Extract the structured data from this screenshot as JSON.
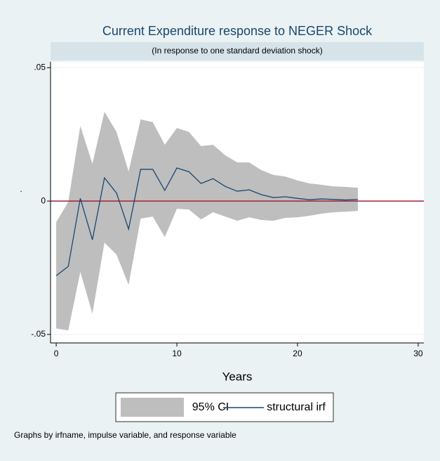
{
  "chart_data": {
    "type": "irf",
    "title": "Current Expenditure response to NEGER Shock",
    "subtitle": "(In response to one standard deviation shock)",
    "x_label": "Years",
    "y_label": ".",
    "note": "Graphs by irfname, impulse variable, and response variable",
    "x": [
      0,
      1,
      2,
      3,
      4,
      5,
      6,
      7,
      8,
      9,
      10,
      11,
      12,
      13,
      14,
      15,
      16,
      17,
      18,
      19,
      20,
      21,
      22,
      23,
      24,
      25
    ],
    "series": [
      {
        "name": "95% CI",
        "color": "#bebebe",
        "upper": [
          -0.0079,
          -0.0003,
          0.0282,
          0.014,
          0.0335,
          0.0259,
          0.0111,
          0.0306,
          0.0296,
          0.0211,
          0.0274,
          0.0259,
          0.0206,
          0.0211,
          0.0172,
          0.0145,
          0.0145,
          0.0116,
          0.0098,
          0.0092,
          0.0077,
          0.0066,
          0.0061,
          0.0055,
          0.0053,
          0.005
        ],
        "lower": [
          -0.0478,
          -0.0485,
          -0.0266,
          -0.0422,
          -0.0156,
          -0.0201,
          -0.0314,
          -0.0066,
          -0.0058,
          -0.0135,
          -0.0029,
          -0.0032,
          -0.0069,
          -0.0042,
          -0.0058,
          -0.0074,
          -0.0061,
          -0.0071,
          -0.0074,
          -0.0063,
          -0.0061,
          -0.0055,
          -0.0047,
          -0.0042,
          -0.004,
          -0.0037
        ]
      },
      {
        "name": "structural irf",
        "color": "#1a476f",
        "values": [
          -0.028,
          -0.0245,
          0.001,
          -0.0145,
          0.0087,
          0.003,
          -0.0105,
          0.0119,
          0.0119,
          0.004,
          0.0124,
          0.011,
          0.0066,
          0.0084,
          0.0055,
          0.0037,
          0.0042,
          0.0024,
          0.0013,
          0.0016,
          0.001,
          0.0005,
          0.0008,
          0.0006,
          0.0004,
          0.0006
        ]
      }
    ],
    "reference_line": {
      "value": 0,
      "color": "#a0203c"
    },
    "xlim": [
      -0.47,
      30.47
    ],
    "ylim": [
      -0.0532,
      0.0522
    ],
    "xticks": [
      0,
      10,
      20,
      30
    ],
    "yticks": [
      {
        "value": -0.05,
        "label": "-.05"
      },
      0,
      {
        "value": 0.05,
        "label": ".05"
      }
    ],
    "grid": true
  }
}
